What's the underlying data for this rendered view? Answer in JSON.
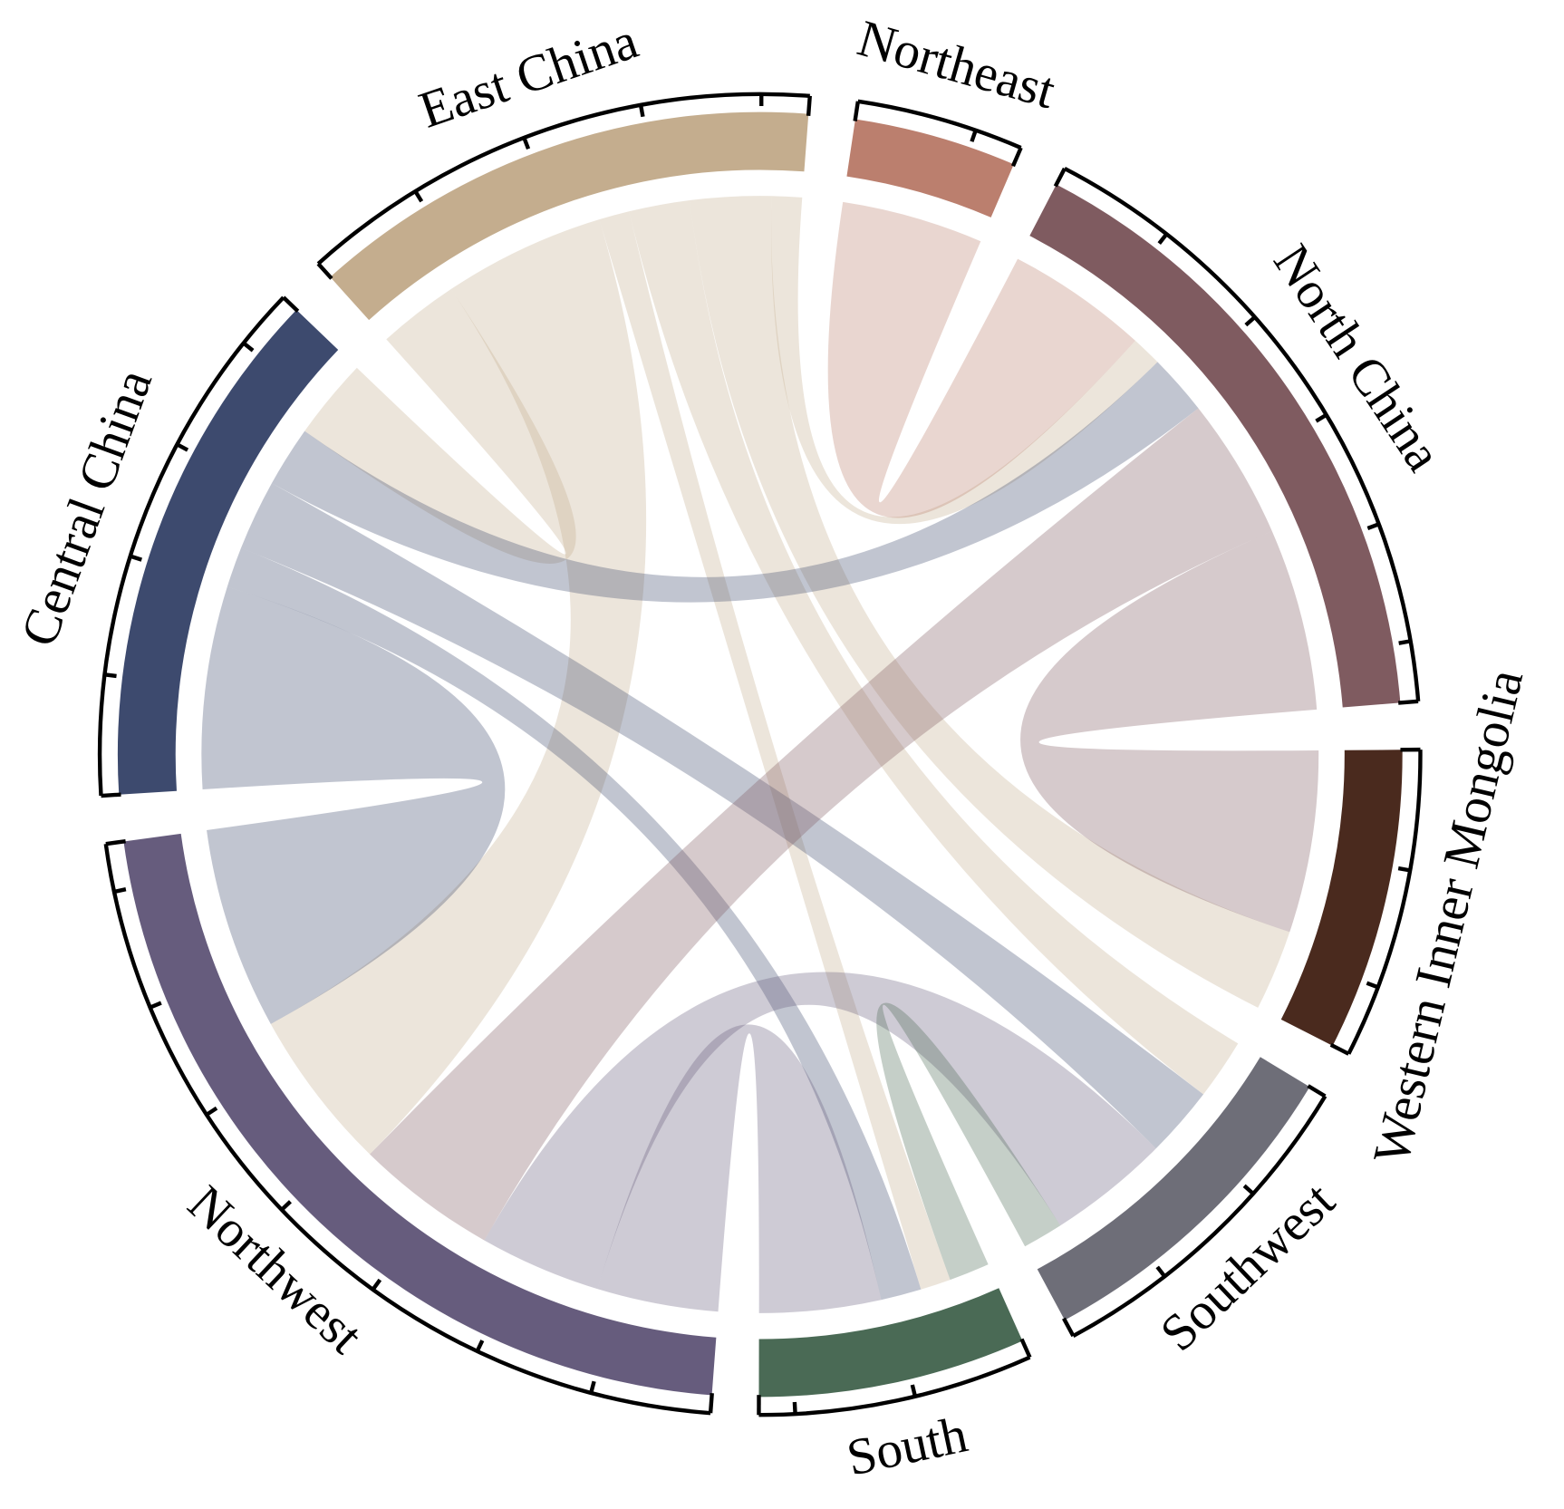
{
  "chart_data": {
    "type": "chord",
    "nodes": [
      {
        "name": "East China",
        "color": "#c4ad8e"
      },
      {
        "name": "Northeast",
        "color": "#bb7f6e"
      },
      {
        "name": "North China",
        "color": "#7f5b60"
      },
      {
        "name": "Western Inner Mongolia",
        "color": "#4a2a1e"
      },
      {
        "name": "Southwest",
        "color": "#6e6e78"
      },
      {
        "name": "South",
        "color": "#4a6a55"
      },
      {
        "name": "Northwest",
        "color": "#665c7d"
      },
      {
        "name": "Central China",
        "color": "#3d4a6e"
      }
    ],
    "flows": [
      {
        "source": "East China",
        "target": "North China",
        "value": 3
      },
      {
        "source": "East China",
        "target": "Northwest",
        "value": 16
      },
      {
        "source": "East China",
        "target": "South",
        "value": 3
      },
      {
        "source": "East China",
        "target": "Southwest",
        "value": 6
      },
      {
        "source": "East China",
        "target": "Western Inner Mongolia",
        "value": 8
      },
      {
        "source": "East China",
        "target": "Central China",
        "value": 8
      },
      {
        "source": "Northeast",
        "target": "North China",
        "value": 14
      },
      {
        "source": "Central China",
        "target": "North China",
        "value": 6
      },
      {
        "source": "Central China",
        "target": "Southwest",
        "value": 7
      },
      {
        "source": "Central China",
        "target": "South",
        "value": 4
      },
      {
        "source": "Central China",
        "target": "Northwest",
        "value": 20
      },
      {
        "source": "North China",
        "target": "Northwest",
        "value": 14
      },
      {
        "source": "North China",
        "target": "Western Inner Mongolia",
        "value": 18
      },
      {
        "source": "Northwest",
        "target": "Southwest",
        "value": 12
      },
      {
        "source": "Northwest",
        "target": "South",
        "value": 12
      },
      {
        "source": "South",
        "target": "Southwest",
        "value": 4
      }
    ],
    "tick_step": 10
  }
}
